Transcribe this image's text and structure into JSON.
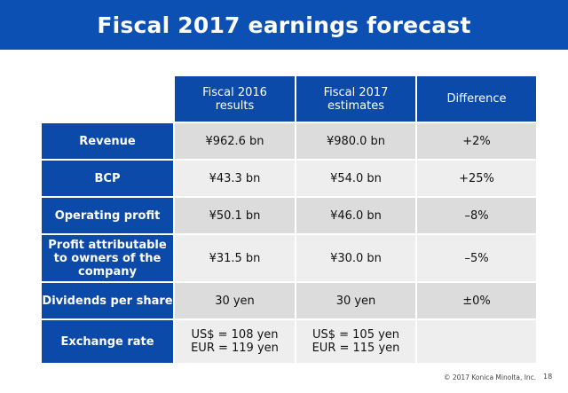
{
  "title": "Fiscal 2017 earnings forecast",
  "columns": [
    {
      "line1": "Fiscal 2016",
      "line2": "results"
    },
    {
      "line1": "Fiscal 2017",
      "line2": "estimates"
    },
    {
      "line1": "Difference",
      "line2": ""
    }
  ],
  "rows": [
    {
      "label": "Revenue",
      "fy2016": "¥962.6 bn",
      "fy2017": "¥980.0 bn",
      "diff": "+2%"
    },
    {
      "label": "BCP",
      "fy2016": "¥43.3 bn",
      "fy2017": "¥54.0 bn",
      "diff": "+25%"
    },
    {
      "label": "Operating profit",
      "fy2016": "¥50.1 bn",
      "fy2017": "¥46.0 bn",
      "diff": "–8%"
    },
    {
      "label": "Profit attributable to owners of the company",
      "fy2016": "¥31.5 bn",
      "fy2017": "¥30.0 bn",
      "diff": "–5%"
    },
    {
      "label": "Dividends per share",
      "fy2016": "30 yen",
      "fy2017": "30 yen",
      "diff": "±0%"
    }
  ],
  "exchange": {
    "label": "Exchange rate",
    "fy2016_usd": "US$ = 108 yen",
    "fy2016_eur": "EUR = 119 yen",
    "fy2017_usd": "US$ = 105 yen",
    "fy2017_eur": "EUR = 115 yen",
    "diff": ""
  },
  "footer": {
    "copyright": "© 2017 Konica Minolta, Inc.",
    "page_number": "18"
  },
  "colors": {
    "title_bar": "#0c50b4",
    "header_fill": "#0b4aa8",
    "row_fill_dark": "#dcdcdc",
    "row_fill_light": "#eeeeee"
  }
}
